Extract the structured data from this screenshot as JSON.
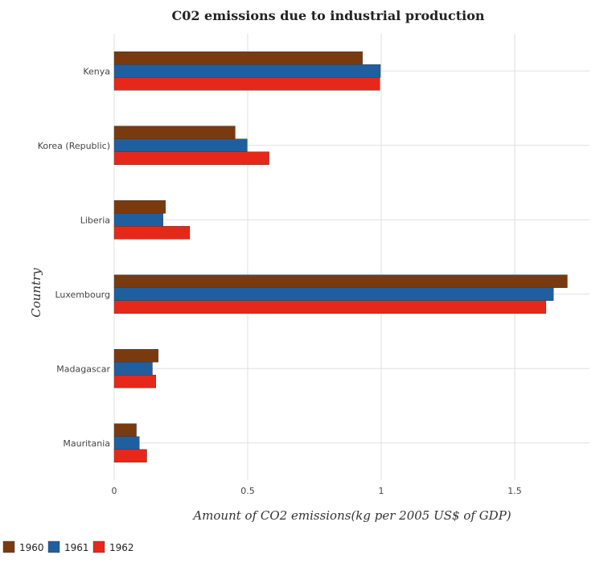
{
  "chart_data": {
    "type": "bar",
    "orientation": "horizontal",
    "title": "C02 emissions due to industrial production",
    "xlabel": "Amount of CO2 emissions(kg per 2005 US$ of GDP)",
    "ylabel": "Country",
    "xlim": [
      0,
      1.78
    ],
    "xticks": [
      "0",
      "0.5",
      "1",
      "1.5"
    ],
    "grid": true,
    "legend_position": "bottom-left",
    "categories": [
      "Kenya",
      "Korea (Republic)",
      "Liberia",
      "Luxembourg",
      "Madagascar",
      "Mauritania"
    ],
    "series": [
      {
        "name": "1960",
        "color": "#7a3a10",
        "values": [
          0.93,
          0.453,
          0.192,
          1.697,
          0.165,
          0.083
        ]
      },
      {
        "name": "1961",
        "color": "#1f5fa0",
        "values": [
          0.997,
          0.498,
          0.183,
          1.645,
          0.143,
          0.094
        ]
      },
      {
        "name": "1962",
        "color": "#e6281a",
        "values": [
          0.995,
          0.58,
          0.283,
          1.617,
          0.156,
          0.122
        ]
      }
    ]
  }
}
